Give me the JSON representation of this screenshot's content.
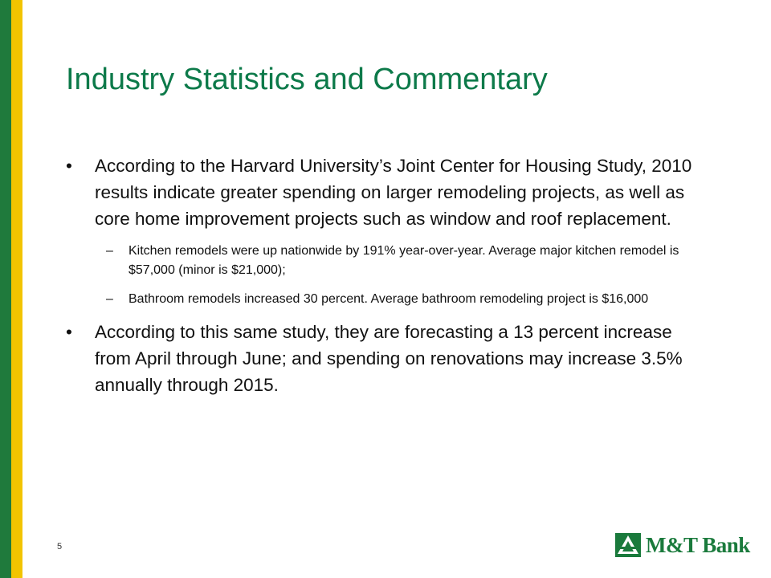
{
  "slide": {
    "title": "Industry Statistics and Commentary",
    "page_number": "5",
    "logo_text": "M&T Bank",
    "colors": {
      "title": "#0d7a4a",
      "accent_green": "#1f7a3c",
      "accent_yellow": "#f2c400"
    }
  },
  "bullets": [
    {
      "mark": "•",
      "text": "According to the Harvard University’s Joint Center for Housing Study, 2010 results indicate greater spending on larger remodeling projects, as well as core home improvement projects such as window and roof replacement."
    },
    {
      "mark": "–",
      "text": "Kitchen remodels were up nationwide by 191% year-over-year. Average major kitchen remodel is $57,000 (minor is $21,000);"
    },
    {
      "mark": "–",
      "text": "Bathroom remodels increased 30 percent. Average bathroom remodeling project is $16,000"
    },
    {
      "mark": "•",
      "text": "According to this same study, they are forecasting a 13 percent increase from April through June; and spending on renovations may increase 3.5% annually through 2015."
    }
  ]
}
